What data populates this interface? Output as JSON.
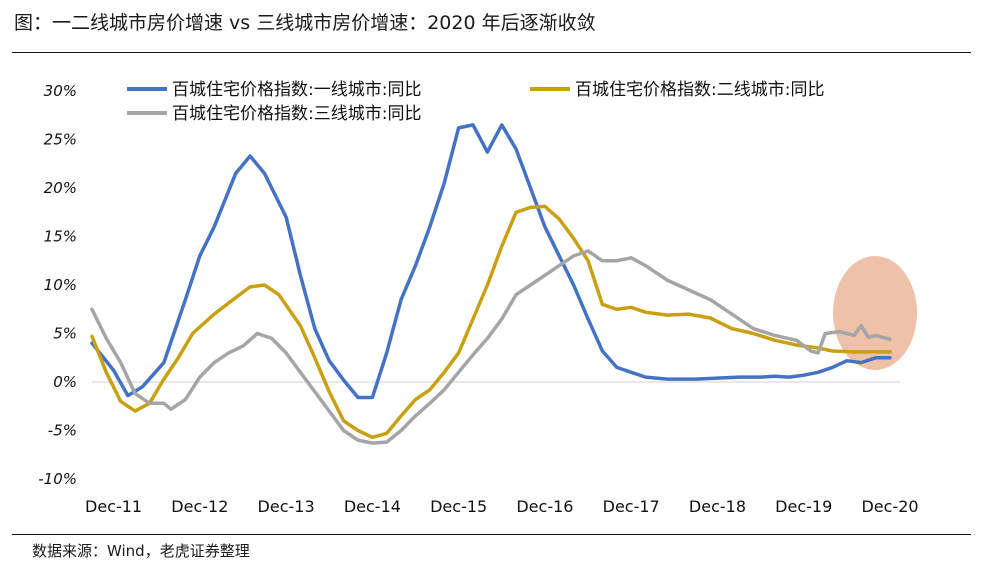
{
  "header": {
    "title": "图：一二线城市房价增速 vs 三线城市房价增速：2020 年后逐渐收敛"
  },
  "footer": {
    "source": "数据来源：Wind，老虎证券整理"
  },
  "colors": {
    "tier1": "#4472C4",
    "tier2": "#C9A011",
    "tier3": "#A5A5A5",
    "highlight": "#E8A683"
  },
  "chart_data": {
    "type": "line",
    "title": "",
    "xlabel": "",
    "ylabel": "",
    "ylim": [
      -0.1,
      0.3
    ],
    "y_ticks": [
      -0.1,
      -0.05,
      0,
      0.05,
      0.1,
      0.15,
      0.2,
      0.25,
      0.3
    ],
    "y_tick_labels": [
      "-10%",
      "-5%",
      "0%",
      "5%",
      "10%",
      "15%",
      "20%",
      "25%",
      "30%"
    ],
    "x_ticks": [
      2011.917,
      2012.917,
      2013.917,
      2014.917,
      2015.917,
      2016.917,
      2017.917,
      2018.917,
      2019.917,
      2020.917
    ],
    "x_tick_labels": [
      "Dec-11",
      "Dec-12",
      "Dec-13",
      "Dec-14",
      "Dec-15",
      "Dec-16",
      "Dec-17",
      "Dec-18",
      "Dec-19",
      "Dec-20"
    ],
    "grid": false,
    "legend_position": "top",
    "annotation": "shaded ellipse highlighting convergence of the three series around mid-2020 to early-2021",
    "series": [
      {
        "name": "百城住宅价格指数:一线城市:同比",
        "color": "#4472C4",
        "points": [
          [
            2011.667,
            0.04
          ],
          [
            2011.917,
            0.012
          ],
          [
            2012.083,
            -0.014
          ],
          [
            2012.25,
            -0.005
          ],
          [
            2012.5,
            0.02
          ],
          [
            2012.75,
            0.085
          ],
          [
            2012.917,
            0.13
          ],
          [
            2013.083,
            0.16
          ],
          [
            2013.333,
            0.215
          ],
          [
            2013.5,
            0.233
          ],
          [
            2013.667,
            0.215
          ],
          [
            2013.917,
            0.17
          ],
          [
            2014.083,
            0.11
          ],
          [
            2014.25,
            0.055
          ],
          [
            2014.417,
            0.022
          ],
          [
            2014.583,
            0.002
          ],
          [
            2014.75,
            -0.016
          ],
          [
            2014.917,
            -0.016
          ],
          [
            2015.083,
            0.03
          ],
          [
            2015.25,
            0.085
          ],
          [
            2015.417,
            0.12
          ],
          [
            2015.583,
            0.16
          ],
          [
            2015.75,
            0.205
          ],
          [
            2015.917,
            0.262
          ],
          [
            2016.083,
            0.265
          ],
          [
            2016.25,
            0.237
          ],
          [
            2016.417,
            0.265
          ],
          [
            2016.583,
            0.24
          ],
          [
            2016.75,
            0.2
          ],
          [
            2016.917,
            0.16
          ],
          [
            2017.083,
            0.13
          ],
          [
            2017.25,
            0.1
          ],
          [
            2017.417,
            0.065
          ],
          [
            2017.583,
            0.032
          ],
          [
            2017.75,
            0.015
          ],
          [
            2017.917,
            0.01
          ],
          [
            2018.083,
            0.005
          ],
          [
            2018.333,
            0.003
          ],
          [
            2018.667,
            0.003
          ],
          [
            2018.917,
            0.004
          ],
          [
            2019.167,
            0.005
          ],
          [
            2019.417,
            0.005
          ],
          [
            2019.583,
            0.006
          ],
          [
            2019.75,
            0.005
          ],
          [
            2019.917,
            0.007
          ],
          [
            2020.083,
            0.01
          ],
          [
            2020.25,
            0.015
          ],
          [
            2020.417,
            0.022
          ],
          [
            2020.583,
            0.02
          ],
          [
            2020.75,
            0.025
          ],
          [
            2020.917,
            0.025
          ]
        ]
      },
      {
        "name": "百城住宅价格指数:二线城市:同比",
        "color": "#C9A011",
        "points": [
          [
            2011.667,
            0.047
          ],
          [
            2011.833,
            0.01
          ],
          [
            2012.0,
            -0.02
          ],
          [
            2012.167,
            -0.03
          ],
          [
            2012.333,
            -0.022
          ],
          [
            2012.5,
            0.003
          ],
          [
            2012.667,
            0.025
          ],
          [
            2012.833,
            0.05
          ],
          [
            2013.083,
            0.07
          ],
          [
            2013.333,
            0.087
          ],
          [
            2013.5,
            0.098
          ],
          [
            2013.667,
            0.1
          ],
          [
            2013.833,
            0.09
          ],
          [
            2014.083,
            0.058
          ],
          [
            2014.25,
            0.025
          ],
          [
            2014.417,
            -0.01
          ],
          [
            2014.583,
            -0.04
          ],
          [
            2014.75,
            -0.05
          ],
          [
            2014.917,
            -0.057
          ],
          [
            2015.083,
            -0.053
          ],
          [
            2015.25,
            -0.035
          ],
          [
            2015.417,
            -0.018
          ],
          [
            2015.583,
            -0.008
          ],
          [
            2015.75,
            0.01
          ],
          [
            2015.917,
            0.03
          ],
          [
            2016.083,
            0.065
          ],
          [
            2016.25,
            0.1
          ],
          [
            2016.417,
            0.14
          ],
          [
            2016.583,
            0.175
          ],
          [
            2016.75,
            0.18
          ],
          [
            2016.917,
            0.181
          ],
          [
            2017.083,
            0.168
          ],
          [
            2017.25,
            0.148
          ],
          [
            2017.417,
            0.125
          ],
          [
            2017.583,
            0.08
          ],
          [
            2017.75,
            0.075
          ],
          [
            2017.917,
            0.077
          ],
          [
            2018.083,
            0.072
          ],
          [
            2018.333,
            0.069
          ],
          [
            2018.583,
            0.07
          ],
          [
            2018.833,
            0.066
          ],
          [
            2019.083,
            0.055
          ],
          [
            2019.333,
            0.05
          ],
          [
            2019.583,
            0.043
          ],
          [
            2019.833,
            0.038
          ],
          [
            2020.083,
            0.035
          ],
          [
            2020.25,
            0.032
          ],
          [
            2020.5,
            0.031
          ],
          [
            2020.75,
            0.031
          ],
          [
            2020.917,
            0.031
          ]
        ]
      },
      {
        "name": "百城住宅价格指数:三线城市:同比",
        "color": "#A5A5A5",
        "points": [
          [
            2011.667,
            0.075
          ],
          [
            2011.833,
            0.045
          ],
          [
            2012.0,
            0.02
          ],
          [
            2012.167,
            -0.012
          ],
          [
            2012.333,
            -0.022
          ],
          [
            2012.5,
            -0.022
          ],
          [
            2012.583,
            -0.028
          ],
          [
            2012.75,
            -0.018
          ],
          [
            2012.917,
            0.005
          ],
          [
            2013.083,
            0.02
          ],
          [
            2013.25,
            0.03
          ],
          [
            2013.417,
            0.037
          ],
          [
            2013.583,
            0.05
          ],
          [
            2013.75,
            0.045
          ],
          [
            2013.917,
            0.03
          ],
          [
            2014.083,
            0.01
          ],
          [
            2014.25,
            -0.01
          ],
          [
            2014.417,
            -0.03
          ],
          [
            2014.583,
            -0.05
          ],
          [
            2014.75,
            -0.06
          ],
          [
            2014.917,
            -0.063
          ],
          [
            2015.083,
            -0.062
          ],
          [
            2015.25,
            -0.05
          ],
          [
            2015.417,
            -0.035
          ],
          [
            2015.583,
            -0.022
          ],
          [
            2015.75,
            -0.008
          ],
          [
            2015.917,
            0.01
          ],
          [
            2016.083,
            0.028
          ],
          [
            2016.25,
            0.045
          ],
          [
            2016.417,
            0.065
          ],
          [
            2016.583,
            0.09
          ],
          [
            2016.75,
            0.1
          ],
          [
            2016.917,
            0.11
          ],
          [
            2017.083,
            0.12
          ],
          [
            2017.25,
            0.13
          ],
          [
            2017.417,
            0.135
          ],
          [
            2017.583,
            0.125
          ],
          [
            2017.75,
            0.125
          ],
          [
            2017.917,
            0.128
          ],
          [
            2018.083,
            0.12
          ],
          [
            2018.333,
            0.105
          ],
          [
            2018.583,
            0.095
          ],
          [
            2018.833,
            0.085
          ],
          [
            2019.083,
            0.07
          ],
          [
            2019.333,
            0.055
          ],
          [
            2019.583,
            0.048
          ],
          [
            2019.833,
            0.043
          ],
          [
            2020.0,
            0.032
          ],
          [
            2020.083,
            0.03
          ],
          [
            2020.167,
            0.05
          ],
          [
            2020.333,
            0.052
          ],
          [
            2020.5,
            0.048
          ],
          [
            2020.583,
            0.058
          ],
          [
            2020.667,
            0.046
          ],
          [
            2020.75,
            0.048
          ],
          [
            2020.917,
            0.044
          ]
        ]
      }
    ]
  }
}
